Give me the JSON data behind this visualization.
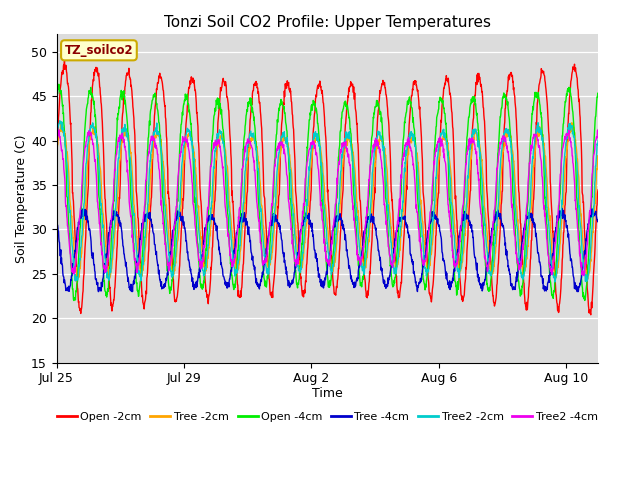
{
  "title": "Tonzi Soil CO2 Profile: Upper Temperatures",
  "xlabel": "Time",
  "ylabel": "Soil Temperature (C)",
  "ylim": [
    15,
    52
  ],
  "yticks": [
    15,
    20,
    25,
    30,
    35,
    40,
    45,
    50
  ],
  "xtick_labels": [
    "Jul 25",
    "Jul 29",
    "Aug 2",
    "Aug 6",
    "Aug 10"
  ],
  "xtick_positions": [
    0,
    4,
    8,
    12,
    16
  ],
  "xlim": [
    0,
    17
  ],
  "plot_bg_color": "#dcdcdc",
  "legend_label": "TZ_soilco2",
  "legend_box_color": "#ffffcc",
  "legend_box_edge": "#ccaa00",
  "series": [
    {
      "label": "Open -2cm",
      "color": "#ff0000",
      "lw": 1.0,
      "amplitude": 14.0,
      "baseline": 34.5,
      "phase": 0.0,
      "min_clip": 18
    },
    {
      "label": "Tree -2cm",
      "color": "#ffa500",
      "lw": 1.0,
      "amplitude": 8.5,
      "baseline": 33.0,
      "phase": 0.08,
      "min_clip": 21
    },
    {
      "label": "Open -4cm",
      "color": "#00ee00",
      "lw": 1.0,
      "amplitude": 12.0,
      "baseline": 34.0,
      "phase": 0.18,
      "min_clip": 22
    },
    {
      "label": "Tree -4cm",
      "color": "#0000cc",
      "lw": 1.0,
      "amplitude": 4.5,
      "baseline": 27.5,
      "phase": 0.4,
      "min_clip": 23
    },
    {
      "label": "Tree2 -2cm",
      "color": "#00cccc",
      "lw": 1.0,
      "amplitude": 9.0,
      "baseline": 33.0,
      "phase": 0.12,
      "min_clip": 21
    },
    {
      "label": "Tree2 -4cm",
      "color": "#ee00ee",
      "lw": 1.0,
      "amplitude": 8.0,
      "baseline": 33.0,
      "phase": 0.22,
      "min_clip": 22
    }
  ],
  "n_days": 17,
  "samples_per_day": 96,
  "figsize": [
    6.4,
    4.8
  ],
  "dpi": 100
}
